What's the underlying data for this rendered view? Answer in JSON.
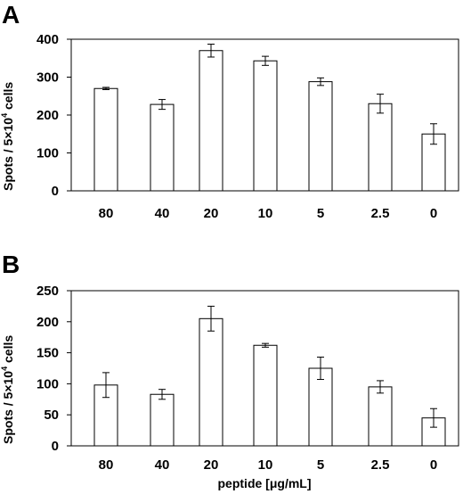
{
  "chart_data": [
    {
      "type": "bar",
      "panel": "A",
      "categories": [
        "80",
        "40",
        "20",
        "10",
        "5",
        "2.5",
        "0"
      ],
      "values": [
        270,
        228,
        370,
        343,
        288,
        230,
        150
      ],
      "errors": [
        3,
        13,
        17,
        12,
        10,
        25,
        27
      ],
      "ylabel_main": "Spots / 5×10",
      "ylabel_sup": "4",
      "ylabel_tail": " cells",
      "xlabel": "",
      "ylim": [
        0,
        400
      ],
      "yticks": [
        0,
        100,
        200,
        300,
        400
      ],
      "grid": false
    },
    {
      "type": "bar",
      "panel": "B",
      "categories": [
        "80",
        "40",
        "20",
        "10",
        "5",
        "2.5",
        "0"
      ],
      "values": [
        98,
        83,
        205,
        162,
        125,
        95,
        45
      ],
      "errors": [
        20,
        8,
        20,
        3,
        18,
        10,
        15
      ],
      "ylabel_main": "Spots / 5×10",
      "ylabel_sup": "4",
      "ylabel_tail": " cells",
      "xlabel": "peptide [μg/mL]",
      "ylim": [
        0,
        250
      ],
      "yticks": [
        0,
        50,
        100,
        150,
        200,
        250
      ],
      "grid": false
    }
  ]
}
